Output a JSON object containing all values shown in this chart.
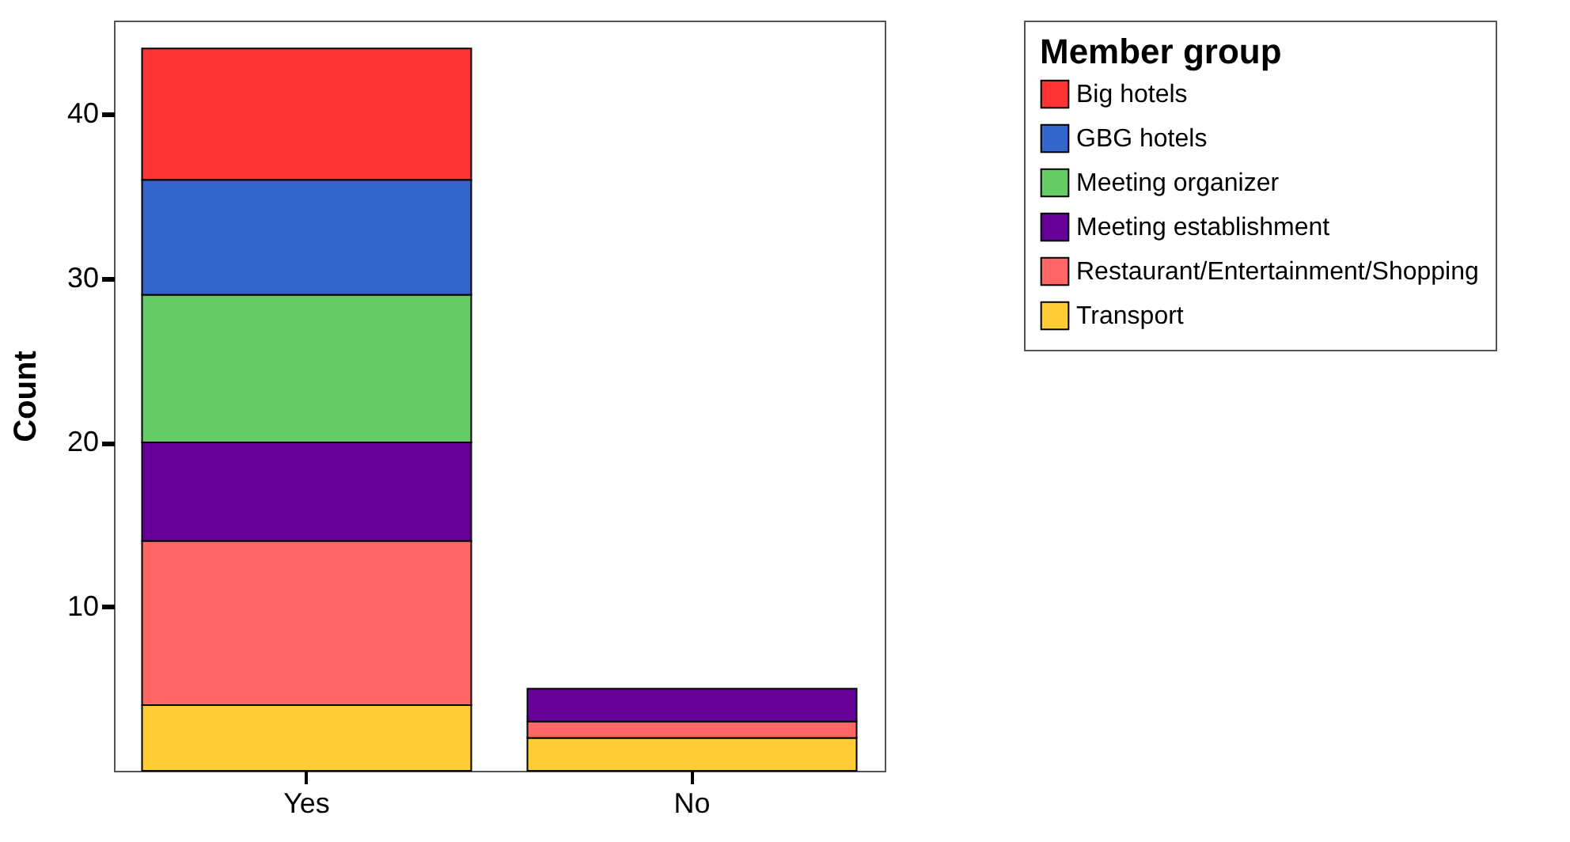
{
  "chart_data": {
    "type": "bar",
    "stacked": true,
    "ylabel": "Count",
    "legend_title": "Member group",
    "legend": "top right",
    "categories": [
      "Yes",
      "No"
    ],
    "series": [
      {
        "name": "Transport",
        "color": "#ffcc33",
        "values": [
          4,
          2
        ]
      },
      {
        "name": "Restaurant/Entertainment/Shopping",
        "color": "#ff6666",
        "values": [
          10,
          1
        ]
      },
      {
        "name": "Meeting establishment",
        "color": "#660099",
        "values": [
          6,
          2
        ]
      },
      {
        "name": "Meeting organizer",
        "color": "#66cc66",
        "values": [
          9,
          0
        ]
      },
      {
        "name": "GBG hotels",
        "color": "#3366cc",
        "values": [
          7,
          0
        ]
      },
      {
        "name": "Big hotels",
        "color": "#ff3333",
        "values": [
          8,
          0
        ]
      }
    ],
    "ylim": [
      0,
      45.7
    ],
    "yticks": [
      10,
      20,
      30,
      40
    ],
    "grid": false
  }
}
